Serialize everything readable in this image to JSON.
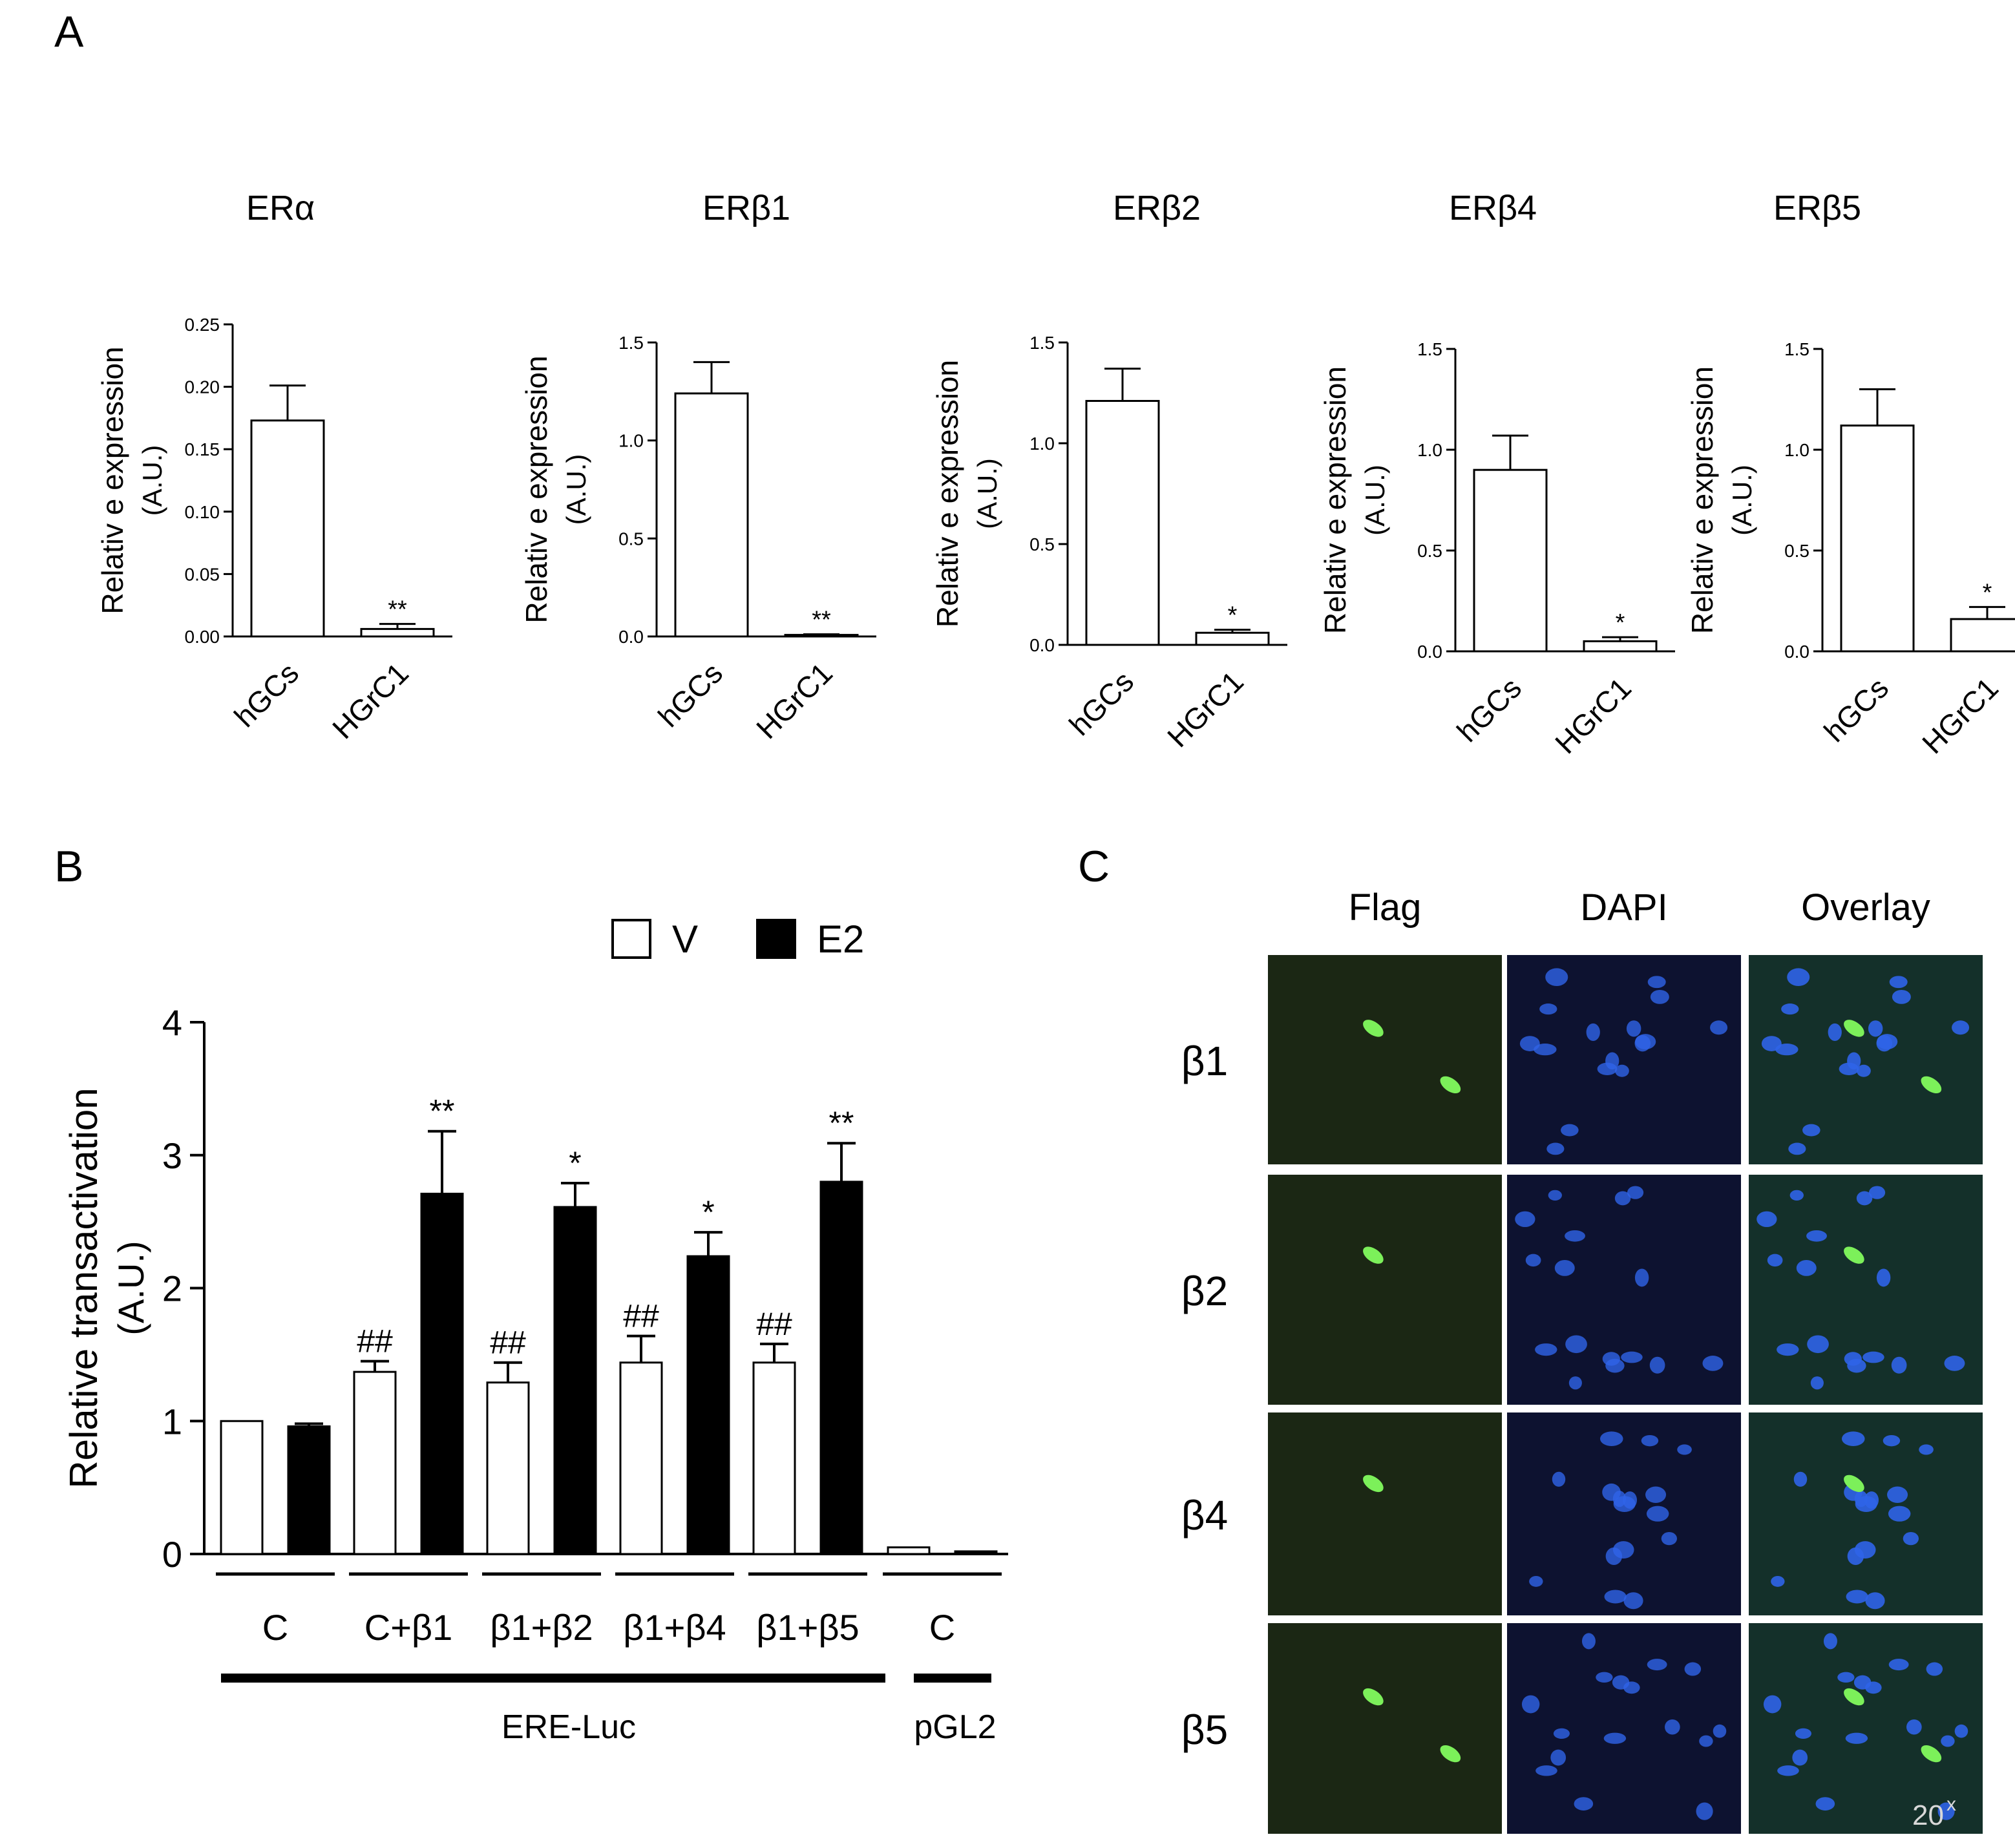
{
  "panels": {
    "a": "A",
    "b": "B",
    "c": "C"
  },
  "chart_data": [
    {
      "id": "era",
      "type": "bar",
      "title": "ERα",
      "ylabel": [
        "Relativ e expression",
        "(A.U.)"
      ],
      "categories": [
        "hGCs",
        "HGrC1"
      ],
      "values": [
        0.173,
        0.006
      ],
      "errors": [
        0.028,
        0.004
      ],
      "significance": [
        "",
        "**"
      ],
      "ylim": [
        0,
        0.25
      ],
      "yticks": [
        0,
        0.05,
        0.1,
        0.15,
        0.2,
        0.25
      ],
      "ytick_labels": [
        "0.00",
        "0.05",
        "0.10",
        "0.15",
        "0.20",
        "0.25"
      ]
    },
    {
      "id": "erb1",
      "type": "bar",
      "title": "ERβ1",
      "ylabel": [
        "Relativ e expression",
        "(A.U.)"
      ],
      "categories": [
        "hGCs",
        "HGrC1"
      ],
      "values": [
        1.24,
        0.008
      ],
      "errors": [
        0.16,
        0.003
      ],
      "significance": [
        "",
        "**"
      ],
      "ylim": [
        0,
        1.5
      ],
      "yticks": [
        0,
        0.5,
        1.0,
        1.5
      ],
      "ytick_labels": [
        "0.0",
        "0.5",
        "1.0",
        "1.5"
      ]
    },
    {
      "id": "erb2",
      "type": "bar",
      "title": "ERβ2",
      "ylabel": [
        "Relativ e expression",
        "(A.U.)"
      ],
      "categories": [
        "hGCs",
        "HGrC1"
      ],
      "values": [
        1.21,
        0.06
      ],
      "errors": [
        0.16,
        0.015
      ],
      "significance": [
        "",
        "*"
      ],
      "ylim": [
        0,
        1.5
      ],
      "yticks": [
        0,
        0.5,
        1.0,
        1.5
      ],
      "ytick_labels": [
        "0.0",
        "0.5",
        "1.0",
        "1.5"
      ]
    },
    {
      "id": "erb4",
      "type": "bar",
      "title": "ERβ4",
      "ylabel": [
        "Relativ e expression",
        "(A.U.)"
      ],
      "categories": [
        "hGCs",
        "HGrC1"
      ],
      "values": [
        0.9,
        0.05
      ],
      "errors": [
        0.17,
        0.02
      ],
      "significance": [
        "",
        "*"
      ],
      "ylim": [
        0,
        1.5
      ],
      "yticks": [
        0,
        0.5,
        1.0,
        1.5
      ],
      "ytick_labels": [
        "0.0",
        "0.5",
        "1.0",
        "1.5"
      ]
    },
    {
      "id": "erb5",
      "type": "bar",
      "title": "ERβ5",
      "ylabel": [
        "Relativ e expression",
        "(A.U.)"
      ],
      "categories": [
        "hGCs",
        "HGrC1"
      ],
      "values": [
        1.12,
        0.16
      ],
      "errors": [
        0.18,
        0.06
      ],
      "significance": [
        "",
        "*"
      ],
      "ylim": [
        0,
        1.5
      ],
      "yticks": [
        0,
        0.5,
        1.0,
        1.5
      ],
      "ytick_labels": [
        "0.0",
        "0.5",
        "1.0",
        "1.5"
      ]
    },
    {
      "id": "transactivation",
      "type": "bar",
      "ylabel": [
        "Relative transactivation",
        "(A.U.)"
      ],
      "legend": [
        {
          "name": "V",
          "color": "#ffffff"
        },
        {
          "name": "E2",
          "color": "#000000"
        }
      ],
      "categories": [
        "C",
        "C+β1",
        "β1+β2",
        "β1+β4",
        "β1+β5",
        "C"
      ],
      "reporters": [
        "ERE-Luc",
        "pGL2"
      ],
      "series": [
        {
          "name": "V",
          "values": [
            1.0,
            1.37,
            1.29,
            1.44,
            1.44,
            0.05
          ],
          "errors": [
            0,
            0.08,
            0.15,
            0.2,
            0.14,
            0
          ],
          "labels": [
            "",
            "##",
            "##",
            "##",
            "##",
            ""
          ]
        },
        {
          "name": "E2",
          "values": [
            0.96,
            2.71,
            2.61,
            2.24,
            2.8,
            0.02
          ],
          "errors": [
            0.02,
            0.47,
            0.18,
            0.18,
            0.29,
            0
          ],
          "labels": [
            "",
            "**",
            "*",
            "*",
            "**",
            ""
          ]
        }
      ],
      "ylim": [
        0,
        4
      ],
      "yticks": [
        0,
        1,
        2,
        3,
        4
      ],
      "ytick_labels": [
        "0",
        "1",
        "2",
        "3",
        "4"
      ]
    }
  ],
  "micrographs": {
    "columns": [
      "Flag",
      "DAPI",
      "Overlay"
    ],
    "rows": [
      "β1",
      "β2",
      "β4",
      "β5"
    ],
    "scale_label": "20",
    "scale_superscript": "x",
    "colors": {
      "flag_bg": "#1b2714",
      "dapi_bg": "#0d1230",
      "overlay_bg": "#14302a",
      "green_signal": "#7cf05a",
      "blue_nucleus": "#2f64e8"
    }
  }
}
